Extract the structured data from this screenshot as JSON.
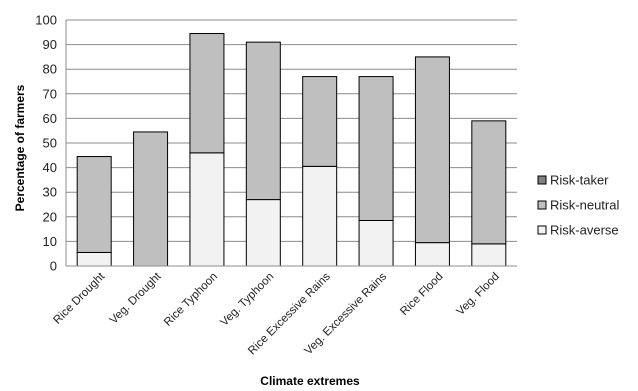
{
  "chart_data": {
    "type": "bar",
    "stacked": true,
    "title": "",
    "xlabel": "Climate extremes",
    "ylabel": "Percentage of farmers",
    "ylim": [
      0,
      100
    ],
    "yticks": [
      0,
      10,
      20,
      30,
      40,
      50,
      60,
      70,
      80,
      90,
      100
    ],
    "grid": true,
    "legend": "right",
    "categories": [
      "Rice Drought",
      "Veg. Drought",
      "Rice Typhoon",
      "Veg. Typhoon",
      "Rice Excessive Rains",
      "Veg. Excessive Rains",
      "Rice Flood",
      "Veg. Flood"
    ],
    "series": [
      {
        "name": "Risk-averse",
        "color": "#f2f2f2",
        "values": [
          5.5,
          0,
          46,
          27,
          40.5,
          18.5,
          9.5,
          9
        ]
      },
      {
        "name": "Risk-neutral",
        "color": "#bfbfbf",
        "values": [
          39,
          54.5,
          48.5,
          64,
          36.5,
          58.5,
          75.5,
          50
        ]
      },
      {
        "name": "Risk-taker",
        "color": "#808080",
        "values": [
          0,
          0,
          0,
          0,
          0,
          0,
          0,
          0
        ]
      }
    ],
    "legend_order": [
      "Risk-taker",
      "Risk-neutral",
      "Risk-averse"
    ]
  }
}
